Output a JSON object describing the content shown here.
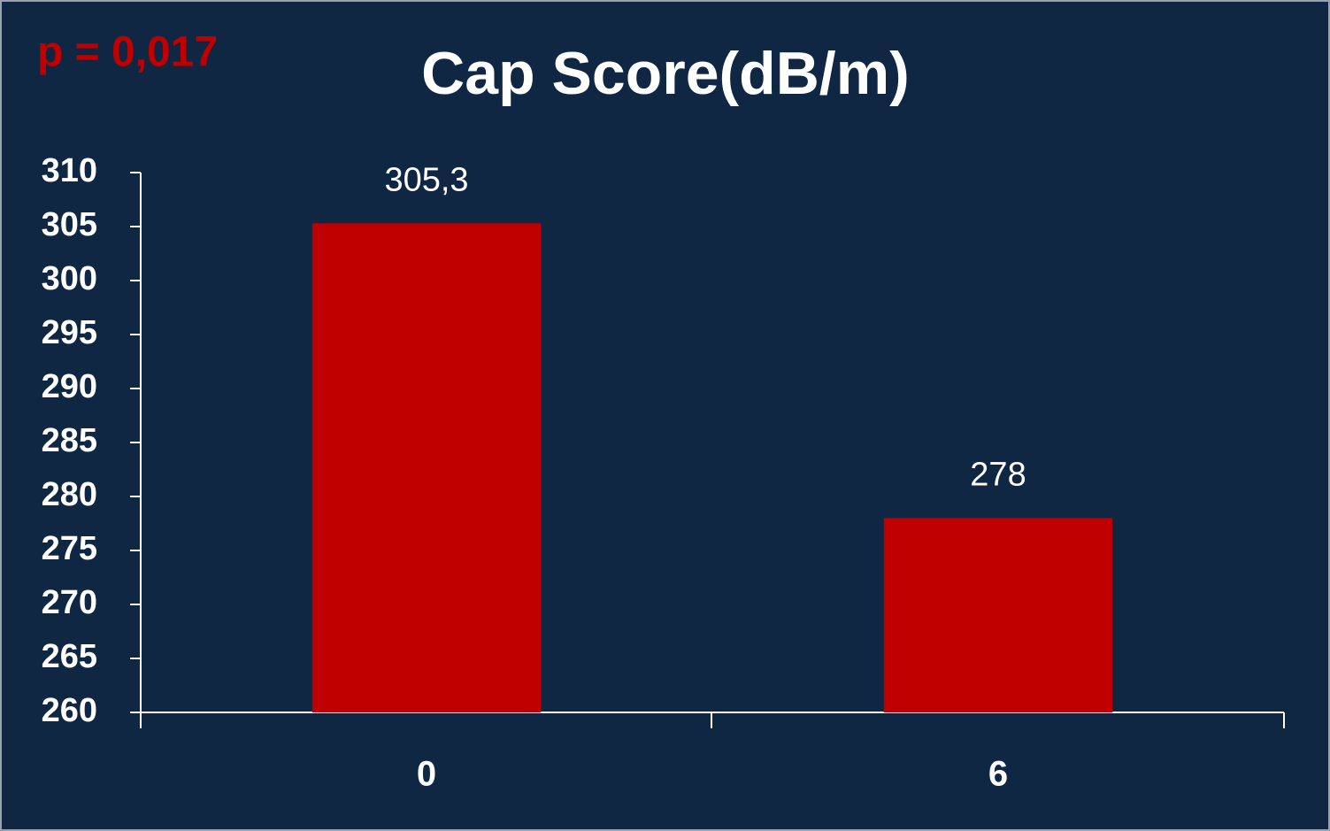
{
  "chart_data": {
    "type": "bar",
    "title": "Cap Score(dB/m)",
    "annotation": "p = 0,017",
    "categories": [
      "0",
      "6"
    ],
    "values": [
      305.3,
      278
    ],
    "value_labels": [
      "305,3",
      "278"
    ],
    "color": "#c00000",
    "ylim": [
      260,
      310
    ],
    "yticks": [
      260,
      265,
      270,
      275,
      280,
      285,
      290,
      295,
      300,
      305,
      310
    ],
    "grid": false
  }
}
